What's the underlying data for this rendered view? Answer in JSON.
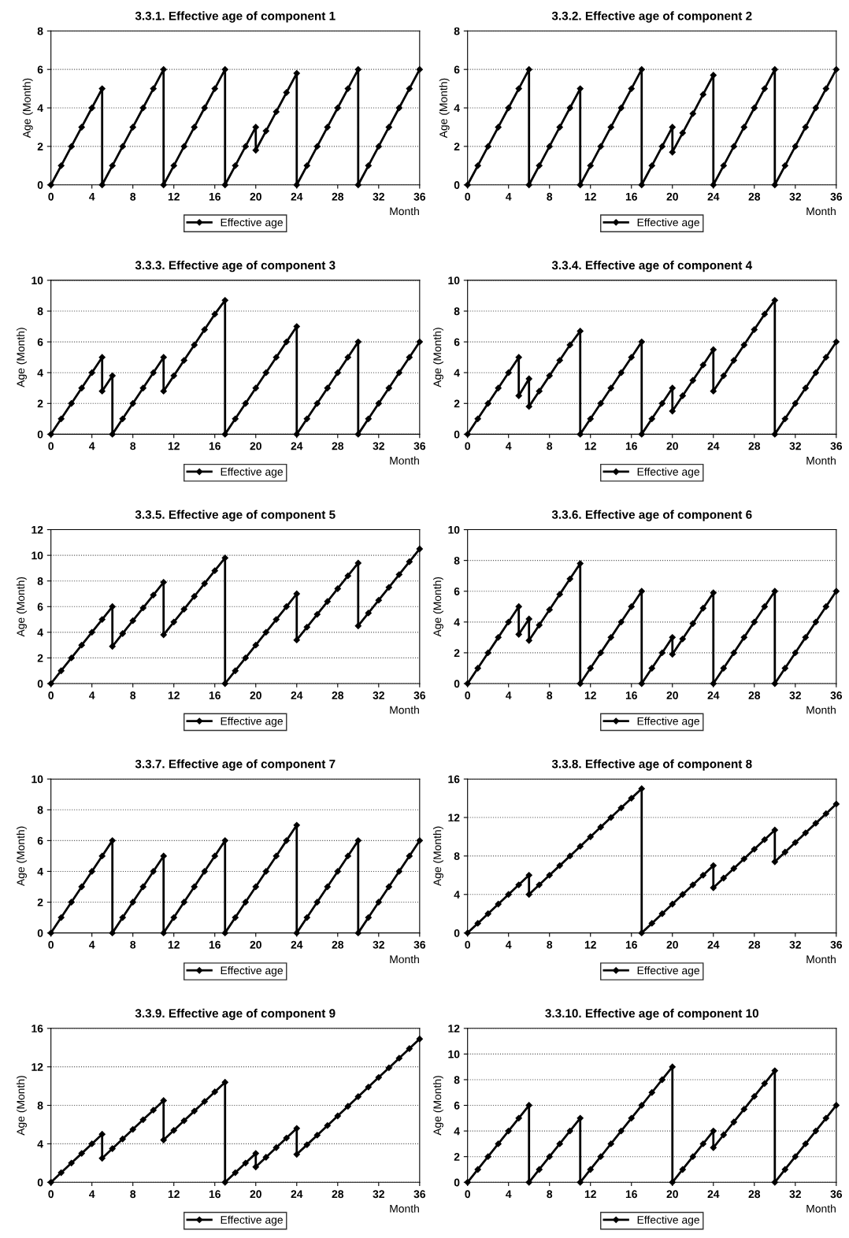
{
  "chart_data": [
    {
      "type": "line",
      "title": "3.3.1. Effective age of component 1",
      "xlabel": "Month",
      "ylabel": "Age (Month)",
      "xlim": [
        0,
        36
      ],
      "xticks": [
        0,
        4,
        8,
        12,
        16,
        20,
        24,
        28,
        32,
        36
      ],
      "ylim": [
        0,
        8
      ],
      "yticks": [
        0,
        2,
        4,
        6,
        8
      ],
      "grid": "y",
      "legend": "bottom",
      "marker": "diamond",
      "line_style": "solid",
      "series": [
        {
          "name": "Effective age",
          "color": "#000000",
          "x": [
            0,
            1,
            2,
            3,
            4,
            5,
            5,
            6,
            7,
            8,
            9,
            10,
            11,
            11,
            12,
            13,
            14,
            15,
            16,
            17,
            17,
            18,
            19,
            20,
            20,
            21,
            22,
            23,
            24,
            24,
            25,
            26,
            27,
            28,
            29,
            30,
            30,
            31,
            32,
            33,
            34,
            35,
            36
          ],
          "values": [
            0,
            1,
            2,
            3,
            4,
            5,
            0,
            1,
            2,
            3,
            4,
            5,
            6,
            0,
            1,
            2,
            3,
            4,
            5,
            6,
            0,
            1,
            2,
            3,
            1.8,
            2.8,
            3.8,
            4.8,
            5.8,
            0,
            1,
            2,
            3,
            4,
            5,
            6,
            0,
            1,
            2,
            3,
            4,
            5,
            6
          ]
        }
      ]
    },
    {
      "type": "line",
      "title": "3.3.2. Effective age of component 2",
      "xlabel": "Month",
      "ylabel": "Age (Month)",
      "xlim": [
        0,
        36
      ],
      "xticks": [
        0,
        4,
        8,
        12,
        16,
        20,
        24,
        28,
        32,
        36
      ],
      "ylim": [
        0,
        8
      ],
      "yticks": [
        0,
        2,
        4,
        6,
        8
      ],
      "grid": "y",
      "legend": "bottom",
      "marker": "diamond",
      "line_style": "solid",
      "series": [
        {
          "name": "Effective age",
          "color": "#000000",
          "x": [
            0,
            1,
            2,
            3,
            4,
            5,
            6,
            6,
            7,
            8,
            9,
            10,
            11,
            11,
            12,
            13,
            14,
            15,
            16,
            17,
            17,
            18,
            19,
            20,
            20,
            21,
            22,
            23,
            24,
            24,
            25,
            26,
            27,
            28,
            29,
            30,
            30,
            31,
            32,
            33,
            34,
            35,
            36
          ],
          "values": [
            0,
            1,
            2,
            3,
            4,
            5,
            6,
            0,
            1,
            2,
            3,
            4,
            5,
            0,
            1,
            2,
            3,
            4,
            5,
            6,
            0,
            1,
            2,
            3,
            1.7,
            2.7,
            3.7,
            4.7,
            5.7,
            0,
            1,
            2,
            3,
            4,
            5,
            6,
            0,
            1,
            2,
            3,
            4,
            5,
            6
          ]
        }
      ]
    },
    {
      "type": "line",
      "title": "3.3.3. Effective age of component 3",
      "xlabel": "Month",
      "ylabel": "Age (Month)",
      "xlim": [
        0,
        36
      ],
      "xticks": [
        0,
        4,
        8,
        12,
        16,
        20,
        24,
        28,
        32,
        36
      ],
      "ylim": [
        0,
        10
      ],
      "yticks": [
        0,
        2,
        4,
        6,
        8,
        10
      ],
      "grid": "y",
      "legend": "bottom",
      "marker": "diamond",
      "line_style": "solid",
      "series": [
        {
          "name": "Effective age",
          "color": "#000000",
          "x": [
            0,
            1,
            2,
            3,
            4,
            5,
            5,
            6,
            6,
            7,
            8,
            9,
            10,
            11,
            11,
            12,
            13,
            14,
            15,
            16,
            17,
            17,
            18,
            19,
            20,
            21,
            22,
            23,
            24,
            24,
            25,
            26,
            27,
            28,
            29,
            30,
            30,
            31,
            32,
            33,
            34,
            35,
            36
          ],
          "values": [
            0,
            1,
            2,
            3,
            4,
            5,
            2.8,
            3.8,
            0,
            1,
            2,
            3,
            4,
            5,
            2.8,
            3.8,
            4.8,
            5.8,
            6.8,
            7.8,
            8.7,
            0,
            1,
            2,
            3,
            4,
            5,
            6,
            7,
            0,
            1,
            2,
            3,
            4,
            5,
            6,
            0,
            1,
            2,
            3,
            4,
            5,
            6
          ]
        }
      ]
    },
    {
      "type": "line",
      "title": "3.3.4. Effective age of component 4",
      "xlabel": "Month",
      "ylabel": "Age (Month)",
      "xlim": [
        0,
        36
      ],
      "xticks": [
        0,
        4,
        8,
        12,
        16,
        20,
        24,
        28,
        32,
        36
      ],
      "ylim": [
        0,
        10
      ],
      "yticks": [
        0,
        2,
        4,
        6,
        8,
        10
      ],
      "grid": "y",
      "legend": "bottom",
      "marker": "diamond",
      "line_style": "solid",
      "series": [
        {
          "name": "Effective age",
          "color": "#000000",
          "x": [
            0,
            1,
            2,
            3,
            4,
            5,
            5,
            6,
            6,
            7,
            8,
            9,
            10,
            11,
            11,
            12,
            13,
            14,
            15,
            16,
            17,
            17,
            18,
            19,
            20,
            20,
            21,
            22,
            23,
            24,
            24,
            25,
            26,
            27,
            28,
            29,
            30,
            30,
            31,
            32,
            33,
            34,
            35,
            36
          ],
          "values": [
            0,
            1,
            2,
            3,
            4,
            5,
            2.5,
            3.6,
            1.8,
            2.8,
            3.8,
            4.8,
            5.8,
            6.7,
            0,
            1,
            2,
            3,
            4,
            5,
            6,
            0,
            1,
            2,
            3,
            1.5,
            2.5,
            3.5,
            4.5,
            5.5,
            2.8,
            3.8,
            4.8,
            5.8,
            6.8,
            7.8,
            8.7,
            0,
            1,
            2,
            3,
            4,
            5,
            6
          ]
        }
      ]
    },
    {
      "type": "line",
      "title": "3.3.5. Effective age of component 5",
      "xlabel": "Month",
      "ylabel": "Age (Month)",
      "xlim": [
        0,
        36
      ],
      "xticks": [
        0,
        4,
        8,
        12,
        16,
        20,
        24,
        28,
        32,
        36
      ],
      "ylim": [
        0,
        12
      ],
      "yticks": [
        0,
        2,
        4,
        6,
        8,
        10,
        12
      ],
      "grid": "y",
      "legend": "bottom",
      "marker": "diamond",
      "line_style": "solid",
      "series": [
        {
          "name": "Effective age",
          "color": "#000000",
          "x": [
            0,
            1,
            2,
            3,
            4,
            5,
            6,
            6,
            7,
            8,
            9,
            10,
            11,
            11,
            12,
            13,
            14,
            15,
            16,
            17,
            17,
            18,
            19,
            20,
            21,
            22,
            23,
            24,
            24,
            25,
            26,
            27,
            28,
            29,
            30,
            30,
            31,
            32,
            33,
            34,
            35,
            36
          ],
          "values": [
            0,
            1,
            2,
            3,
            4,
            5,
            6,
            2.9,
            3.9,
            4.9,
            5.9,
            6.9,
            7.9,
            3.8,
            4.8,
            5.8,
            6.8,
            7.8,
            8.8,
            9.8,
            0,
            1,
            2,
            3,
            4,
            5,
            6,
            7,
            3.4,
            4.4,
            5.4,
            6.4,
            7.4,
            8.4,
            9.4,
            4.5,
            5.5,
            6.5,
            7.5,
            8.5,
            9.5,
            10.5
          ]
        }
      ]
    },
    {
      "type": "line",
      "title": "3.3.6. Effective age of component 6",
      "xlabel": "Month",
      "ylabel": "Age (Month)",
      "xlim": [
        0,
        36
      ],
      "xticks": [
        0,
        4,
        8,
        12,
        16,
        20,
        24,
        28,
        32,
        36
      ],
      "ylim": [
        0,
        10
      ],
      "yticks": [
        0,
        2,
        4,
        6,
        8,
        10
      ],
      "grid": "y",
      "legend": "bottom",
      "marker": "diamond",
      "line_style": "solid",
      "series": [
        {
          "name": "Effective age",
          "color": "#000000",
          "x": [
            0,
            1,
            2,
            3,
            4,
            5,
            5,
            6,
            6,
            7,
            8,
            9,
            10,
            11,
            11,
            12,
            13,
            14,
            15,
            16,
            17,
            17,
            18,
            19,
            20,
            20,
            21,
            22,
            23,
            24,
            24,
            25,
            26,
            27,
            28,
            29,
            30,
            30,
            31,
            32,
            33,
            34,
            35,
            36
          ],
          "values": [
            0,
            1,
            2,
            3,
            4,
            5,
            3.2,
            4.2,
            2.8,
            3.8,
            4.8,
            5.8,
            6.8,
            7.8,
            0,
            1,
            2,
            3,
            4,
            5,
            6,
            0,
            1,
            2,
            3,
            1.9,
            2.9,
            3.9,
            4.9,
            5.9,
            0,
            1,
            2,
            3,
            4,
            5,
            6,
            0,
            1,
            2,
            3,
            4,
            5,
            6
          ]
        }
      ]
    },
    {
      "type": "line",
      "title": "3.3.7. Effective age of component 7",
      "xlabel": "Month",
      "ylabel": "Age (Month)",
      "xlim": [
        0,
        36
      ],
      "xticks": [
        0,
        4,
        8,
        12,
        16,
        20,
        24,
        28,
        32,
        36
      ],
      "ylim": [
        0,
        10
      ],
      "yticks": [
        0,
        2,
        4,
        6,
        8,
        10
      ],
      "grid": "y",
      "legend": "bottom",
      "marker": "diamond",
      "line_style": "solid",
      "series": [
        {
          "name": "Effective age",
          "color": "#000000",
          "x": [
            0,
            1,
            2,
            3,
            4,
            5,
            6,
            6,
            7,
            8,
            9,
            10,
            11,
            11,
            12,
            13,
            14,
            15,
            16,
            17,
            17,
            18,
            19,
            20,
            21,
            22,
            23,
            24,
            24,
            25,
            26,
            27,
            28,
            29,
            30,
            30,
            31,
            32,
            33,
            34,
            35,
            36
          ],
          "values": [
            0,
            1,
            2,
            3,
            4,
            5,
            6,
            0,
            1,
            2,
            3,
            4,
            5,
            0,
            1,
            2,
            3,
            4,
            5,
            6,
            0,
            1,
            2,
            3,
            4,
            5,
            6,
            7,
            0,
            1,
            2,
            3,
            4,
            5,
            6,
            0,
            1,
            2,
            3,
            4,
            5,
            6
          ]
        }
      ]
    },
    {
      "type": "line",
      "title": "3.3.8. Effective age of component 8",
      "xlabel": "Month",
      "ylabel": "Age (Month)",
      "xlim": [
        0,
        36
      ],
      "xticks": [
        0,
        4,
        8,
        12,
        16,
        20,
        24,
        28,
        32,
        36
      ],
      "ylim": [
        0,
        16
      ],
      "yticks": [
        0,
        4,
        8,
        12,
        16
      ],
      "grid": "y",
      "legend": "bottom",
      "marker": "diamond",
      "line_style": "solid",
      "series": [
        {
          "name": "Effective age",
          "color": "#000000",
          "x": [
            0,
            1,
            2,
            3,
            4,
            5,
            6,
            6,
            7,
            8,
            9,
            10,
            11,
            12,
            13,
            14,
            15,
            16,
            17,
            17,
            18,
            19,
            20,
            21,
            22,
            23,
            24,
            24,
            25,
            26,
            27,
            28,
            29,
            30,
            30,
            31,
            32,
            33,
            34,
            35,
            36
          ],
          "values": [
            0,
            1,
            2,
            3,
            4,
            5,
            6,
            4,
            5,
            6,
            7,
            8,
            9,
            10,
            11,
            12,
            13,
            14,
            15,
            0,
            1,
            2,
            3,
            4,
            5,
            6,
            7,
            4.7,
            5.7,
            6.7,
            7.7,
            8.7,
            9.7,
            10.7,
            7.4,
            8.4,
            9.4,
            10.4,
            11.4,
            12.4,
            13.4
          ]
        }
      ]
    },
    {
      "type": "line",
      "title": "3.3.9. Effective age of component 9",
      "xlabel": "Month",
      "ylabel": "Age (Month)",
      "xlim": [
        0,
        36
      ],
      "xticks": [
        0,
        4,
        8,
        12,
        16,
        20,
        24,
        28,
        32,
        36
      ],
      "ylim": [
        0,
        16
      ],
      "yticks": [
        0,
        4,
        8,
        12,
        16
      ],
      "grid": "y",
      "legend": "bottom",
      "marker": "diamond",
      "line_style": "solid",
      "series": [
        {
          "name": "Effective age",
          "color": "#000000",
          "x": [
            0,
            1,
            2,
            3,
            4,
            5,
            5,
            6,
            7,
            8,
            9,
            10,
            11,
            11,
            12,
            13,
            14,
            15,
            16,
            17,
            17,
            18,
            19,
            20,
            20,
            21,
            22,
            23,
            24,
            24,
            25,
            26,
            27,
            28,
            29,
            30,
            31,
            32,
            33,
            34,
            35,
            36
          ],
          "values": [
            0,
            1,
            2,
            3,
            4,
            5,
            2.5,
            3.5,
            4.5,
            5.5,
            6.5,
            7.5,
            8.5,
            4.4,
            5.4,
            6.4,
            7.4,
            8.4,
            9.4,
            10.4,
            0,
            1,
            2,
            3,
            1.6,
            2.6,
            3.6,
            4.6,
            5.6,
            2.9,
            3.9,
            4.9,
            5.9,
            6.9,
            7.9,
            8.9,
            9.9,
            10.9,
            11.9,
            12.9,
            13.9,
            14.9
          ]
        }
      ]
    },
    {
      "type": "line",
      "title": "3.3.10. Effective age of component 10",
      "xlabel": "Month",
      "ylabel": "Age (Month)",
      "xlim": [
        0,
        36
      ],
      "xticks": [
        0,
        4,
        8,
        12,
        16,
        20,
        24,
        28,
        32,
        36
      ],
      "ylim": [
        0,
        12
      ],
      "yticks": [
        0,
        2,
        4,
        6,
        8,
        10,
        12
      ],
      "grid": "y",
      "legend": "bottom",
      "marker": "diamond",
      "line_style": "solid",
      "series": [
        {
          "name": "Effective age",
          "color": "#000000",
          "x": [
            0,
            1,
            2,
            3,
            4,
            5,
            6,
            6,
            7,
            8,
            9,
            10,
            11,
            11,
            12,
            13,
            14,
            15,
            16,
            17,
            18,
            19,
            20,
            20,
            21,
            22,
            23,
            24,
            24,
            25,
            26,
            27,
            28,
            29,
            30,
            30,
            31,
            32,
            33,
            34,
            35,
            36
          ],
          "values": [
            0,
            1,
            2,
            3,
            4,
            5,
            6,
            0,
            1,
            2,
            3,
            4,
            5,
            0,
            1,
            2,
            3,
            4,
            5,
            6,
            7,
            8,
            9,
            0,
            1,
            2,
            3,
            4,
            2.7,
            3.7,
            4.7,
            5.7,
            6.7,
            7.7,
            8.7,
            0,
            1,
            2,
            3,
            4,
            5,
            6
          ]
        }
      ]
    }
  ]
}
